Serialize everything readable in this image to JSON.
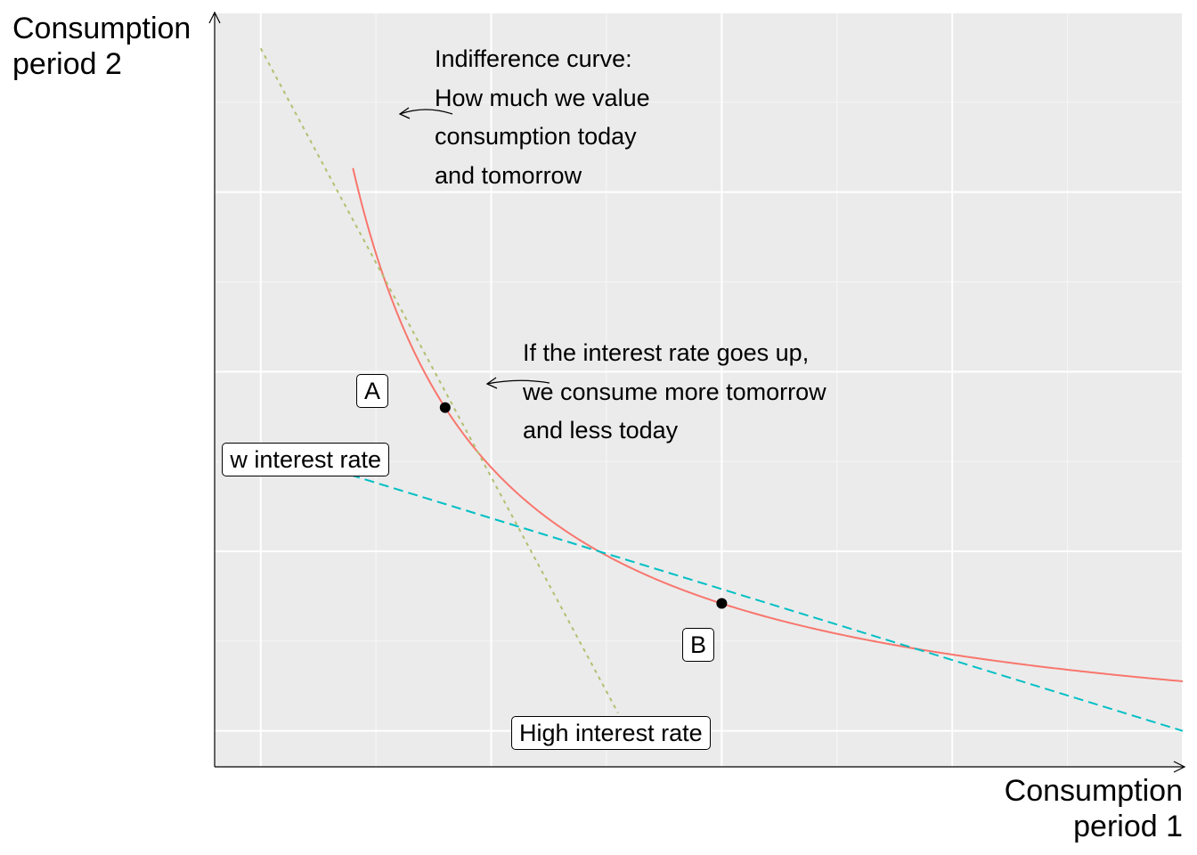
{
  "chart_data": {
    "type": "line",
    "title": "",
    "xlabel": "Consumption\nperiod 1",
    "ylabel": "Consumption\nperiod 2",
    "xlim": [
      0,
      4.2
    ],
    "ylim": [
      0,
      4.2
    ],
    "grid": true,
    "axis_ticks_shown": false,
    "series": [
      {
        "kind": "curve",
        "name": "Indifference curve",
        "color": "#F8766D",
        "style": "solid",
        "formula": "y = 2 / x",
        "x_range": [
          0.6,
          4.2
        ]
      },
      {
        "kind": "line",
        "name": "High interest rate",
        "color": "#B3BF6F",
        "style": "dashed",
        "points": [
          [
            0.2,
            4.0
          ],
          [
            1.75,
            0.3
          ]
        ]
      },
      {
        "kind": "line",
        "name": "Low interest rate",
        "color": "#00BFC4",
        "style": "dashed",
        "points": [
          [
            0.4,
            1.7
          ],
          [
            4.2,
            0.2
          ]
        ]
      }
    ],
    "points": [
      {
        "label": "A",
        "x": 1.0,
        "y": 2.0
      },
      {
        "label": "B",
        "x": 2.2,
        "y": 0.91
      }
    ],
    "annotations": [
      {
        "text": "Indifference curve:\nHow much we value\nconsumption today\nand tomorrow"
      },
      {
        "text": "If the interest rate goes up,\nwe consume more tomorrow\nand less today"
      }
    ],
    "line_labels": [
      {
        "text": "High interest rate",
        "series": "High interest rate"
      },
      {
        "text": "Low interest rate",
        "series": "Low interest rate",
        "clipped_display": "w interest rate"
      }
    ]
  },
  "colors": {
    "panel_background": "#EBEBEB",
    "grid_major": "#FFFFFF",
    "grid_minor": "#F5F5F5",
    "axis": "#000000"
  }
}
